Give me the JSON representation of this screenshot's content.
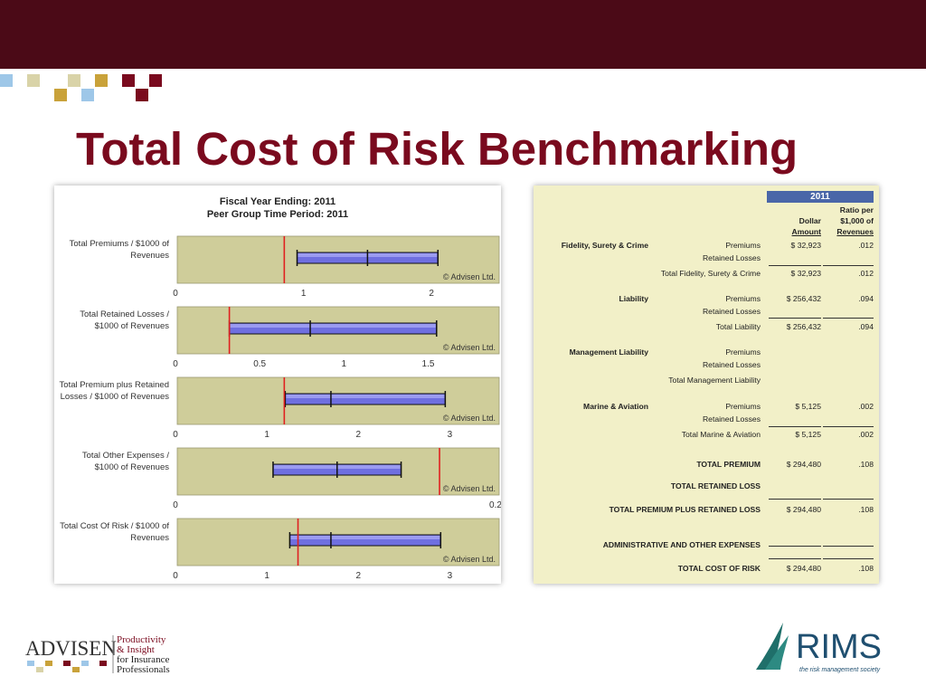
{
  "slide": {
    "title": "Total Cost of Risk Benchmarking",
    "colors": {
      "topbar": "#4b0a17",
      "title": "#7a0a1e",
      "squares": [
        "#c9a23a",
        "#9ec7e8",
        "#7a0a1e",
        "#d9d3a8"
      ]
    }
  },
  "chart_header": {
    "line1": "Fiscal Year Ending: 2011",
    "line2": "Peer Group Time Period: 2011"
  },
  "chart_data": [
    {
      "type": "boxplot",
      "label_lines": [
        "Total Premiums / $1000 of",
        "Revenues"
      ],
      "xlim": [
        0,
        2.5
      ],
      "ticks": [
        0,
        1,
        2
      ],
      "tick_labels": [
        "0",
        "1",
        "2"
      ],
      "min": 0.95,
      "median": 1.5,
      "max": 2.05,
      "marker": 0.85,
      "watermark": "© Advisen Ltd."
    },
    {
      "type": "boxplot",
      "label_lines": [
        "Total Retained Losses /",
        "$1000 of Revenues"
      ],
      "xlim": [
        0,
        1.9
      ],
      "ticks": [
        0,
        0.5,
        1,
        1.5
      ],
      "tick_labels": [
        "0",
        "0.5",
        "1",
        "1.5"
      ],
      "min": 0.32,
      "median": 0.8,
      "max": 1.55,
      "marker": 0.32,
      "watermark": "© Advisen Ltd."
    },
    {
      "type": "boxplot",
      "label_lines": [
        "Total Premium plus Retained",
        "Losses / $1000 of Revenues"
      ],
      "xlim": [
        0,
        3.5
      ],
      "ticks": [
        0,
        1,
        2,
        3
      ],
      "tick_labels": [
        "0",
        "1",
        "2",
        "3"
      ],
      "min": 1.2,
      "median": 1.7,
      "max": 2.95,
      "marker": 1.19,
      "watermark": "© Advisen Ltd."
    },
    {
      "type": "boxplot",
      "label_lines": [
        "Total Other Expenses /",
        "$1000 of Revenues"
      ],
      "xlim": [
        0,
        0.2
      ],
      "ticks": [
        0,
        0.2
      ],
      "tick_labels": [
        "0",
        "0.2"
      ],
      "min": 0.061,
      "median": 0.101,
      "max": 0.141,
      "marker": 0.165,
      "watermark": "© Advisen Ltd."
    },
    {
      "type": "boxplot",
      "label_lines": [
        "Total Cost Of Risk / $1000 of",
        "Revenues"
      ],
      "xlim": [
        0,
        3.5
      ],
      "ticks": [
        0,
        1,
        2,
        3
      ],
      "tick_labels": [
        "0",
        "1",
        "2",
        "3"
      ],
      "min": 1.25,
      "median": 1.7,
      "max": 2.9,
      "marker": 1.34,
      "watermark": "© Advisen Ltd."
    }
  ],
  "table": {
    "year": "2011",
    "col1_header": [
      "Dollar",
      "Amount"
    ],
    "col2_header": [
      "Ratio per",
      "$1,000 of",
      "Revenues"
    ],
    "rows": [
      {
        "group": "Fidelity, Surety & Crime",
        "label": "Premiums",
        "amount": "$ 32,923",
        "ratio": ".012"
      },
      {
        "group": "",
        "label": "Retained Losses",
        "amount": "",
        "ratio": ""
      },
      {
        "group": "",
        "label": "Total Fidelity, Surety & Crime",
        "amount": "$ 32,923",
        "ratio": ".012"
      },
      {
        "group": "Liability",
        "label": "Premiums",
        "amount": "$ 256,432",
        "ratio": ".094"
      },
      {
        "group": "",
        "label": "Retained Losses",
        "amount": "",
        "ratio": ""
      },
      {
        "group": "",
        "label": "Total Liability",
        "amount": "$ 256,432",
        "ratio": ".094"
      },
      {
        "group": "Management Liability",
        "label": "Premiums",
        "amount": "",
        "ratio": ""
      },
      {
        "group": "",
        "label": "Retained Losses",
        "amount": "",
        "ratio": ""
      },
      {
        "group": "",
        "label": "Total Management Liability",
        "amount": "",
        "ratio": ""
      },
      {
        "group": "Marine & Aviation",
        "label": "Premiums",
        "amount": "$ 5,125",
        "ratio": ".002"
      },
      {
        "group": "",
        "label": "Retained Losses",
        "amount": "",
        "ratio": ""
      },
      {
        "group": "",
        "label": "Total Marine & Aviation",
        "amount": "$ 5,125",
        "ratio": ".002"
      },
      {
        "group": "",
        "label": "TOTAL PREMIUM",
        "amount": "$ 294,480",
        "ratio": ".108"
      },
      {
        "group": "",
        "label": "TOTAL RETAINED LOSS",
        "amount": "",
        "ratio": ""
      },
      {
        "group": "",
        "label": "TOTAL PREMIUM PLUS RETAINED LOSS",
        "amount": "$ 294,480",
        "ratio": ".108"
      },
      {
        "group": "",
        "label": "ADMINISTRATIVE AND OTHER EXPENSES",
        "amount": "",
        "ratio": ""
      },
      {
        "group": "",
        "label": "TOTAL COST OF RISK",
        "amount": "$ 294,480",
        "ratio": ".108"
      }
    ]
  },
  "logos": {
    "advisen": {
      "name": "ADVISEN",
      "tagline": [
        "Productivity",
        "& Insight",
        "for Insurance",
        "Professionals"
      ]
    },
    "rims": {
      "name": "RIMS",
      "tagline": "the risk management society"
    }
  }
}
